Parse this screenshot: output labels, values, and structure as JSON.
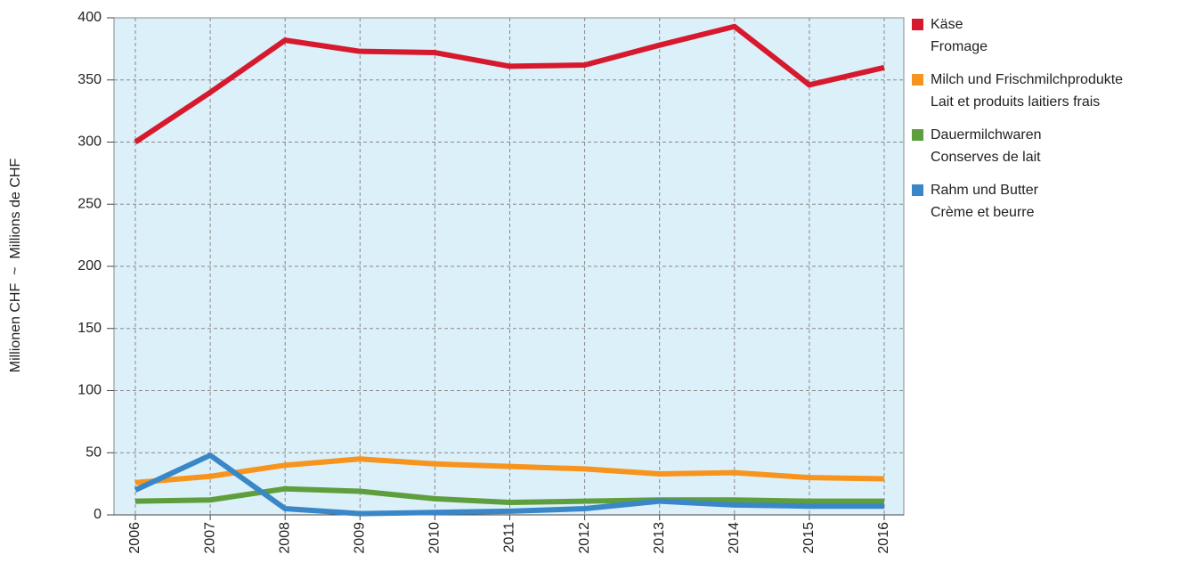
{
  "chart_data": {
    "type": "line",
    "y_label": "Millionen CHF  ~  Millions de CHF",
    "categories": [
      "2006",
      "2007",
      "2008",
      "2009",
      "2010",
      "2011",
      "2012",
      "2013",
      "2014",
      "2015",
      "2016"
    ],
    "series": [
      {
        "name": "Käse",
        "name_fr": "Fromage",
        "color": "#d7192e",
        "values": [
          300,
          340,
          382,
          373,
          372,
          361,
          362,
          378,
          393,
          346,
          360
        ]
      },
      {
        "name": "Milch und Frischmilchprodukte",
        "name_fr": "Lait et produits laitiers frais",
        "color": "#f7941d",
        "values": [
          26,
          31,
          40,
          45,
          41,
          39,
          37,
          33,
          34,
          30,
          29
        ]
      },
      {
        "name": "Dauermilchwaren",
        "name_fr": "Conserves de lait",
        "color": "#5e9e3c",
        "values": [
          11,
          12,
          21,
          19,
          13,
          10,
          11,
          12,
          12,
          11,
          11
        ]
      },
      {
        "name": "Rahm und Butter",
        "name_fr": "Crème et beurre",
        "color": "#3a87c8",
        "values": [
          20,
          48,
          5,
          1,
          2,
          3,
          5,
          11,
          8,
          7,
          7
        ]
      }
    ],
    "ylim": [
      0,
      400
    ],
    "yticks": [
      0,
      50,
      100,
      150,
      200,
      250,
      300,
      350,
      400
    ],
    "grid": true
  }
}
